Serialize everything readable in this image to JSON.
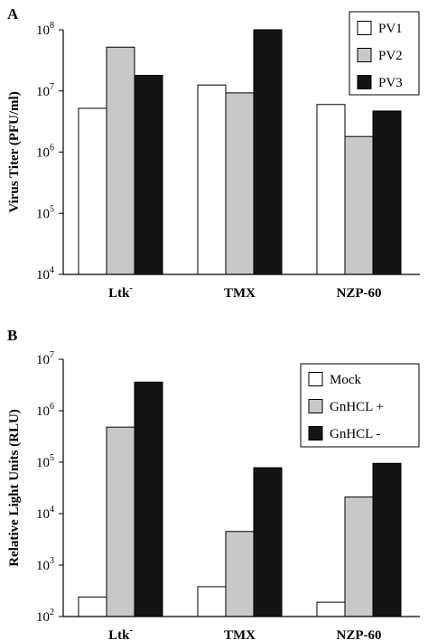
{
  "colors": {
    "axis": "#000000",
    "white_fill": "#ffffff",
    "gray_fill": "#c8c8c8",
    "black_fill": "#141414"
  },
  "chart_data": [
    {
      "panel_label": "A",
      "type": "bar",
      "scale": "log",
      "ylabel": "Virus Titer (PFU/ml)",
      "xlabel": "",
      "ylim": [
        10000,
        100000000
      ],
      "y_ticks": [
        {
          "base": "10",
          "exp": "4",
          "value": 10000
        },
        {
          "base": "10",
          "exp": "5",
          "value": 100000
        },
        {
          "base": "10",
          "exp": "6",
          "value": 1000000
        },
        {
          "base": "10",
          "exp": "7",
          "value": 10000000
        },
        {
          "base": "10",
          "exp": "8",
          "value": 100000000
        }
      ],
      "categories": [
        {
          "name": "Ltk",
          "sup": "-"
        },
        {
          "name": "TMX",
          "sup": ""
        },
        {
          "name": "NZP-60",
          "sup": ""
        }
      ],
      "legend_position": "top-right",
      "grid": false,
      "series": [
        {
          "name": "PV1",
          "fill": "white",
          "values": [
            5200000,
            12500000,
            6000000
          ]
        },
        {
          "name": "PV2",
          "fill": "gray",
          "values": [
            52000000,
            9300000,
            1800000
          ]
        },
        {
          "name": "PV3",
          "fill": "black",
          "values": [
            18000000,
            100000000,
            4700000
          ]
        }
      ]
    },
    {
      "panel_label": "B",
      "type": "bar",
      "scale": "log",
      "ylabel": "Relative Light Units (RLU)",
      "xlabel": "",
      "ylim": [
        100,
        10000000
      ],
      "y_ticks": [
        {
          "base": "10",
          "exp": "2",
          "value": 100
        },
        {
          "base": "10",
          "exp": "3",
          "value": 1000
        },
        {
          "base": "10",
          "exp": "4",
          "value": 10000
        },
        {
          "base": "10",
          "exp": "5",
          "value": 100000
        },
        {
          "base": "10",
          "exp": "6",
          "value": 1000000
        },
        {
          "base": "10",
          "exp": "7",
          "value": 10000000
        }
      ],
      "categories": [
        {
          "name": "Ltk",
          "sup": "-"
        },
        {
          "name": "TMX",
          "sup": ""
        },
        {
          "name": "NZP-60",
          "sup": ""
        }
      ],
      "legend_position": "top-right",
      "grid": false,
      "series": [
        {
          "name": "Mock",
          "fill": "white",
          "values": [
            240,
            380,
            190
          ]
        },
        {
          "name": "GnHCL +",
          "fill": "gray",
          "values": [
            480000,
            4500,
            21000
          ]
        },
        {
          "name": "GnHCL -",
          "fill": "black",
          "values": [
            3600000,
            78000,
            95000
          ]
        }
      ]
    }
  ]
}
